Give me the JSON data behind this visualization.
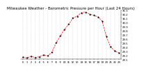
{
  "title": "Milwaukee Weather - Barometric Pressure per Hour (Last 24 Hours)",
  "hours": [
    0,
    1,
    2,
    3,
    4,
    5,
    6,
    7,
    8,
    9,
    10,
    11,
    12,
    13,
    14,
    15,
    16,
    17,
    18,
    19,
    20,
    21,
    22,
    23
  ],
  "pressure": [
    29.1,
    29.08,
    29.12,
    29.09,
    29.11,
    29.15,
    29.13,
    29.22,
    29.45,
    29.62,
    29.78,
    29.9,
    30.05,
    30.1,
    30.18,
    30.2,
    30.15,
    30.12,
    30.08,
    29.98,
    29.6,
    29.35,
    29.25,
    29.2
  ],
  "line_color": "#ff0000",
  "marker_color": "#000000",
  "grid_color": "#aaaaaa",
  "bg_color": "#ffffff",
  "ylim_min": 29.05,
  "ylim_max": 30.25,
  "ytick_step": 0.1,
  "title_fontsize": 4.0,
  "tick_fontsize": 2.8,
  "num_yticks": 12,
  "marker_size": 1.5,
  "line_width": 0.5
}
